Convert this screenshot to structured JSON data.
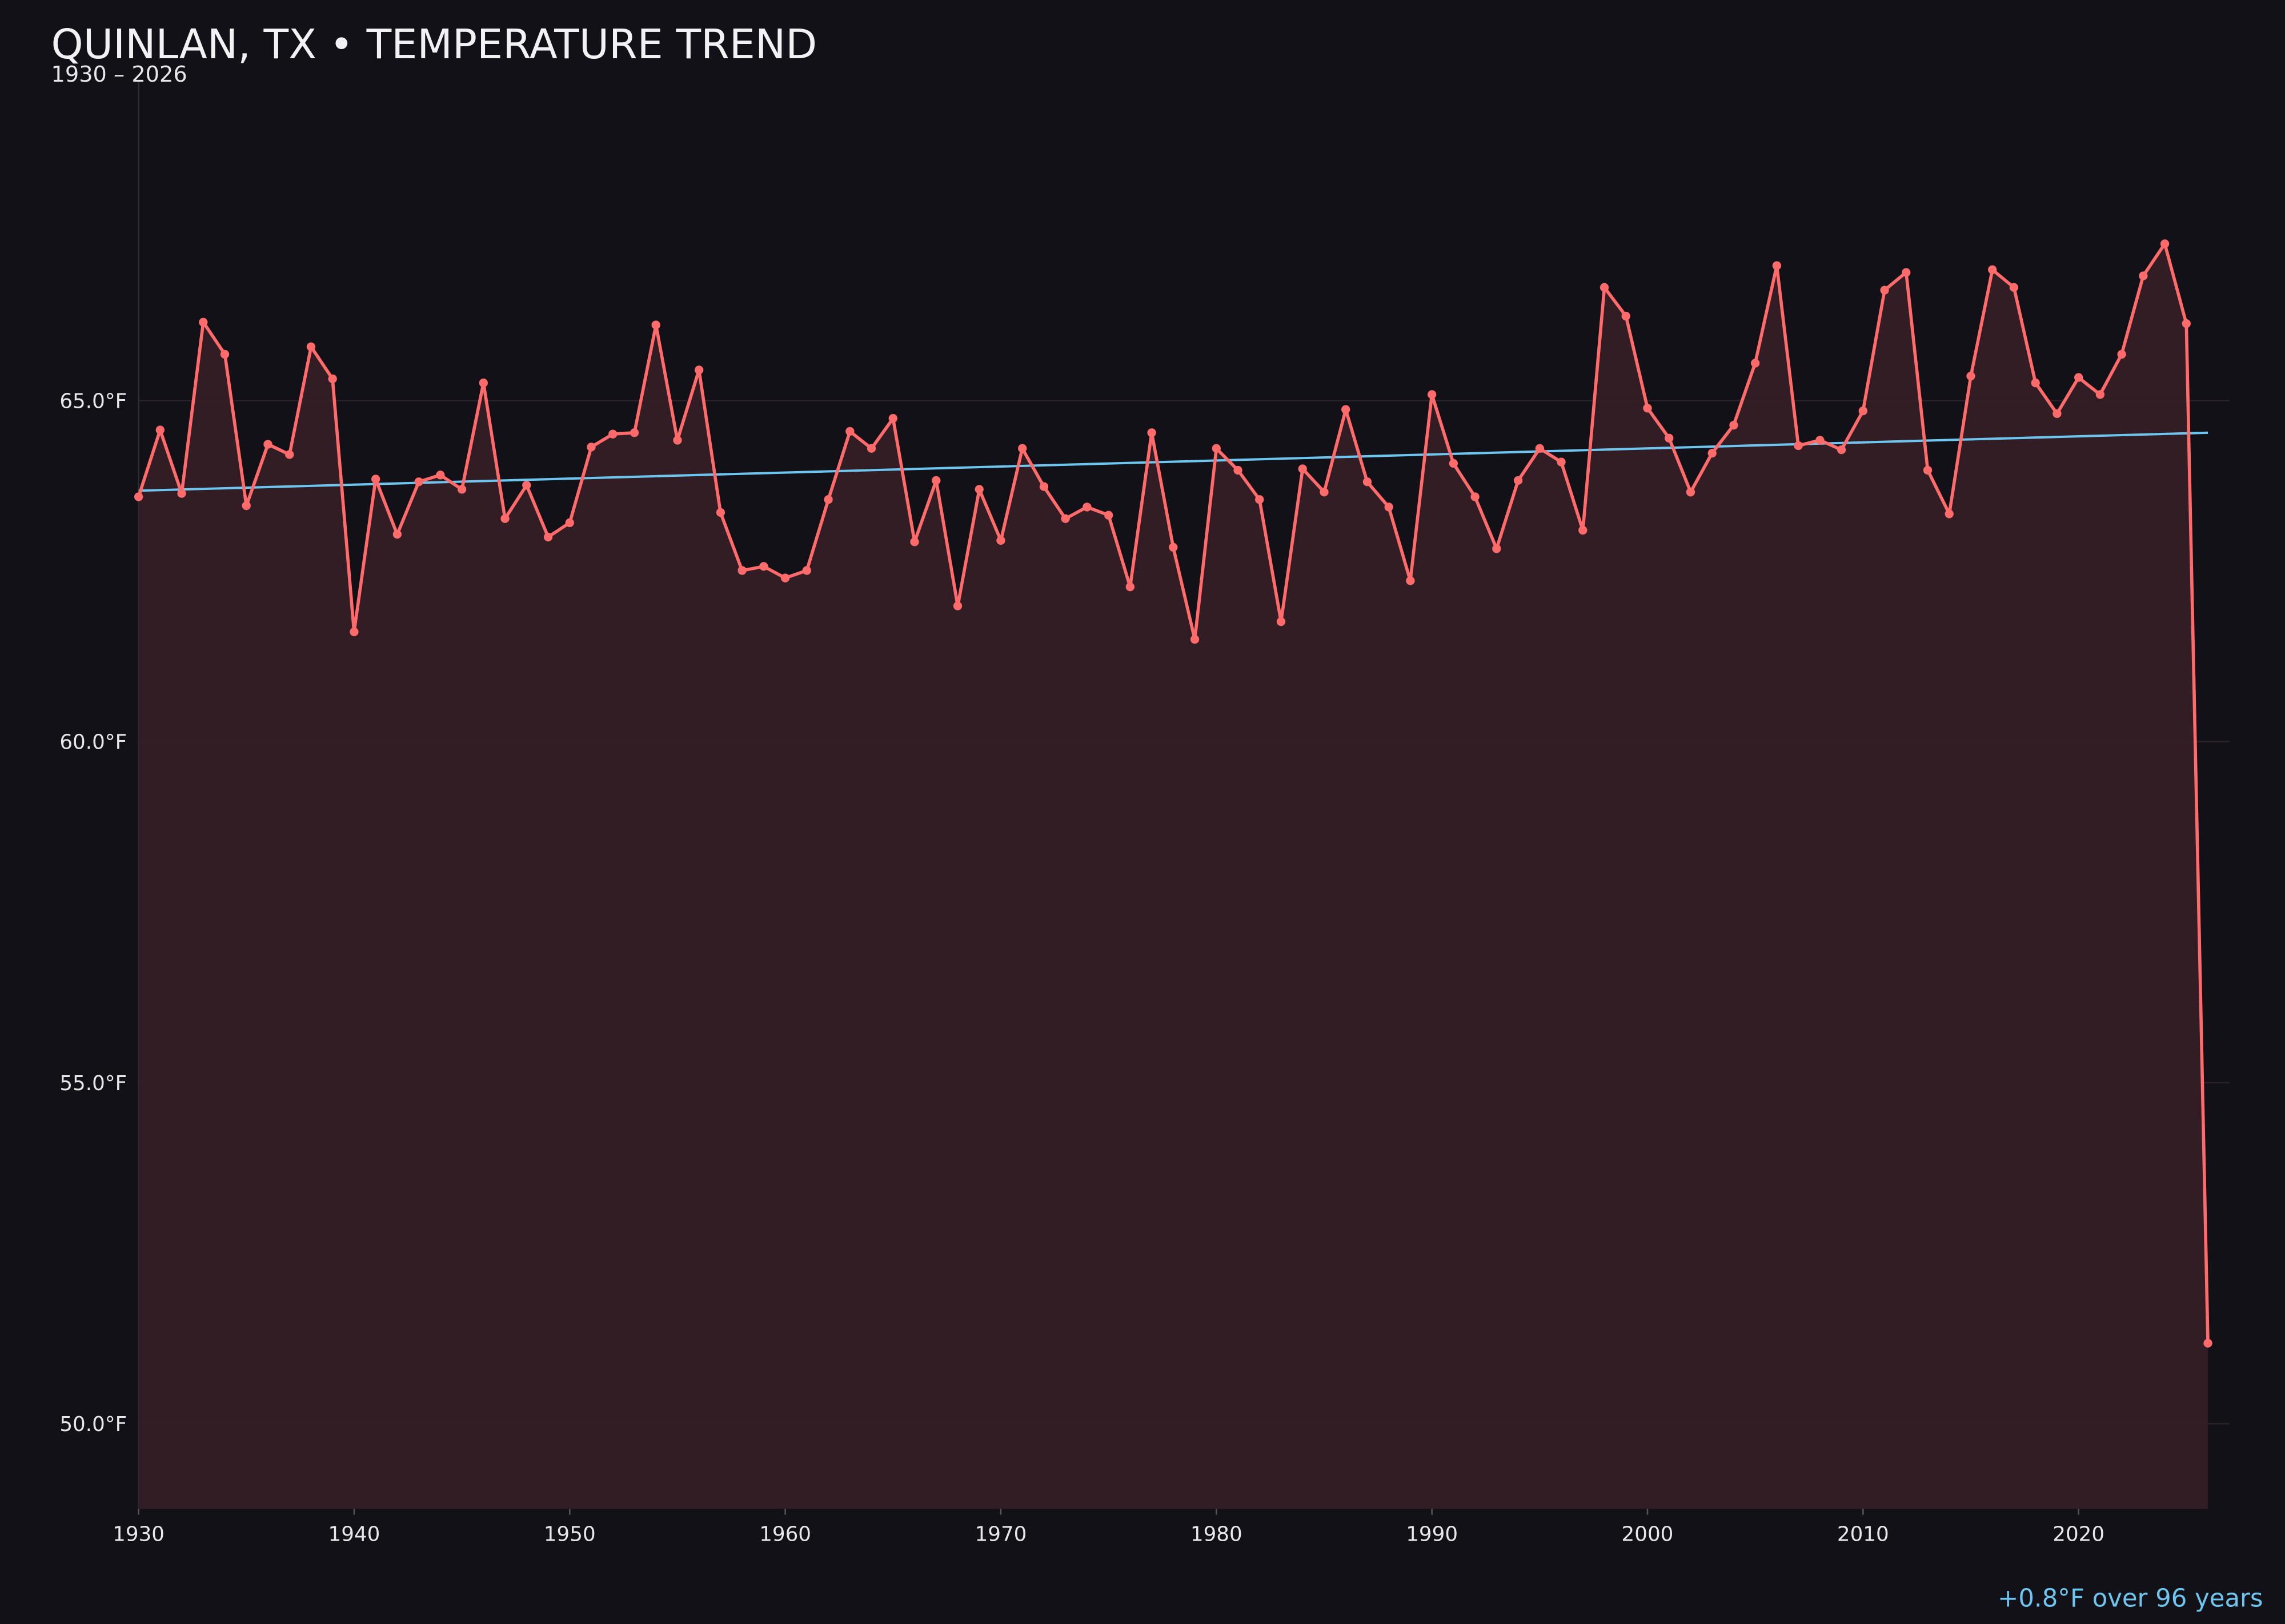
{
  "chart_data": {
    "type": "line",
    "title": "QUINLAN, TX • TEMPERATURE TREND",
    "subtitle": "1930 – 2026",
    "annotation": "+0.8°F over 96 years",
    "xlabel": "",
    "ylabel": "",
    "xlim": [
      1930,
      2027
    ],
    "ylim": [
      48.75,
      69.7
    ],
    "grid": true,
    "x_ticks": [
      "1930",
      "1940",
      "1950",
      "1960",
      "1970",
      "1980",
      "1990",
      "2000",
      "2010",
      "2020"
    ],
    "y_ticks": [
      "50.0°F",
      "55.0°F",
      "60.0°F",
      "65.0°F"
    ],
    "y_tick_values": [
      50,
      55,
      60,
      65
    ],
    "colors": {
      "line": "#ff6b6b",
      "fill": "#351f25",
      "trend": "#6ec6f0",
      "background": "#121117",
      "annotation": "#6ec6f0"
    },
    "x": [
      1930,
      1931,
      1932,
      1933,
      1934,
      1935,
      1936,
      1937,
      1938,
      1939,
      1940,
      1941,
      1942,
      1943,
      1944,
      1945,
      1946,
      1947,
      1948,
      1949,
      1950,
      1951,
      1952,
      1953,
      1954,
      1955,
      1956,
      1957,
      1958,
      1959,
      1960,
      1961,
      1962,
      1963,
      1964,
      1965,
      1966,
      1967,
      1968,
      1969,
      1970,
      1971,
      1972,
      1973,
      1974,
      1975,
      1976,
      1977,
      1978,
      1979,
      1980,
      1981,
      1982,
      1983,
      1984,
      1985,
      1986,
      1987,
      1988,
      1989,
      1990,
      1991,
      1992,
      1993,
      1994,
      1995,
      1996,
      1997,
      1998,
      1999,
      2000,
      2001,
      2002,
      2003,
      2004,
      2005,
      2006,
      2007,
      2008,
      2009,
      2010,
      2011,
      2012,
      2013,
      2014,
      2015,
      2016,
      2017,
      2018,
      2019,
      2020,
      2021,
      2022,
      2023,
      2024,
      2025,
      2026
    ],
    "series": [
      {
        "values": [
          63.59,
          64.57,
          63.64,
          66.15,
          65.68,
          63.46,
          64.36,
          64.21,
          65.79,
          65.32,
          61.61,
          63.85,
          63.04,
          63.81,
          63.91,
          63.7,
          65.26,
          63.27,
          63.76,
          63.0,
          63.21,
          64.32,
          64.51,
          64.53,
          66.11,
          64.42,
          65.45,
          63.36,
          62.51,
          62.57,
          62.4,
          62.51,
          63.55,
          64.55,
          64.3,
          64.74,
          62.93,
          63.83,
          61.99,
          63.7,
          62.95,
          64.3,
          63.74,
          63.27,
          63.44,
          63.32,
          62.27,
          64.53,
          62.85,
          61.5,
          64.3,
          63.98,
          63.55,
          61.76,
          64.0,
          63.66,
          64.87,
          63.81,
          63.44,
          62.36,
          65.09,
          64.08,
          63.59,
          62.83,
          63.83,
          64.3,
          64.1,
          63.1,
          66.66,
          66.24,
          64.89,
          64.45,
          63.66,
          64.23,
          64.64,
          65.55,
          66.98,
          64.34,
          64.42,
          64.28,
          64.85,
          66.62,
          66.88,
          63.98,
          63.34,
          65.36,
          66.92,
          66.66,
          65.26,
          64.81,
          65.34,
          65.09,
          65.68,
          66.83,
          67.3,
          66.13,
          51.18
        ]
      }
    ],
    "trend": {
      "start": [
        1930,
        63.68
      ],
      "end": [
        2026,
        64.53
      ]
    }
  }
}
